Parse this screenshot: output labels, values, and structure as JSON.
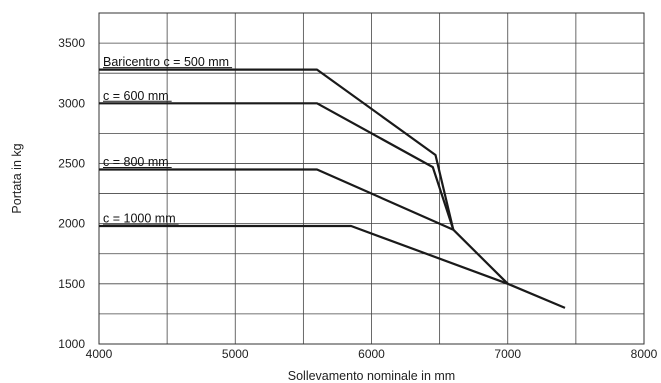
{
  "chart_data": {
    "type": "line",
    "xlabel": "Sollevamento nominale in mm",
    "ylabel": "Portata in kg",
    "xlim": [
      4000,
      8000
    ],
    "ylim": [
      1000,
      3750
    ],
    "x_ticks": [
      4000,
      5000,
      6000,
      7000,
      8000
    ],
    "x_tick_labels": [
      "4000",
      "5000",
      "6000",
      "7000",
      "8000"
    ],
    "y_ticks": [
      1000,
      1500,
      2000,
      2500,
      3000,
      3500
    ],
    "y_tick_labels": [
      "1000",
      "1500",
      "2000",
      "2500",
      "3000",
      "3500"
    ],
    "grid": true,
    "grid_x_step": 500,
    "grid_y_step": 250,
    "series": [
      {
        "name": "Baricentro c = 500 mm",
        "x": [
          4000,
          5600,
          6470,
          6600
        ],
        "y": [
          3280,
          3280,
          2570,
          1950
        ]
      },
      {
        "name": "c = 600 mm",
        "x": [
          4000,
          5600,
          6450,
          6600
        ],
        "y": [
          3000,
          3000,
          2470,
          1950
        ]
      },
      {
        "name": "c = 800 mm",
        "x": [
          4000,
          5600,
          6600,
          7000
        ],
        "y": [
          2450,
          2450,
          1950,
          1500
        ]
      },
      {
        "name": "c = 1000 mm",
        "x": [
          4000,
          5850,
          7000,
          7420
        ],
        "y": [
          1980,
          1980,
          1500,
          1300
        ]
      }
    ]
  }
}
